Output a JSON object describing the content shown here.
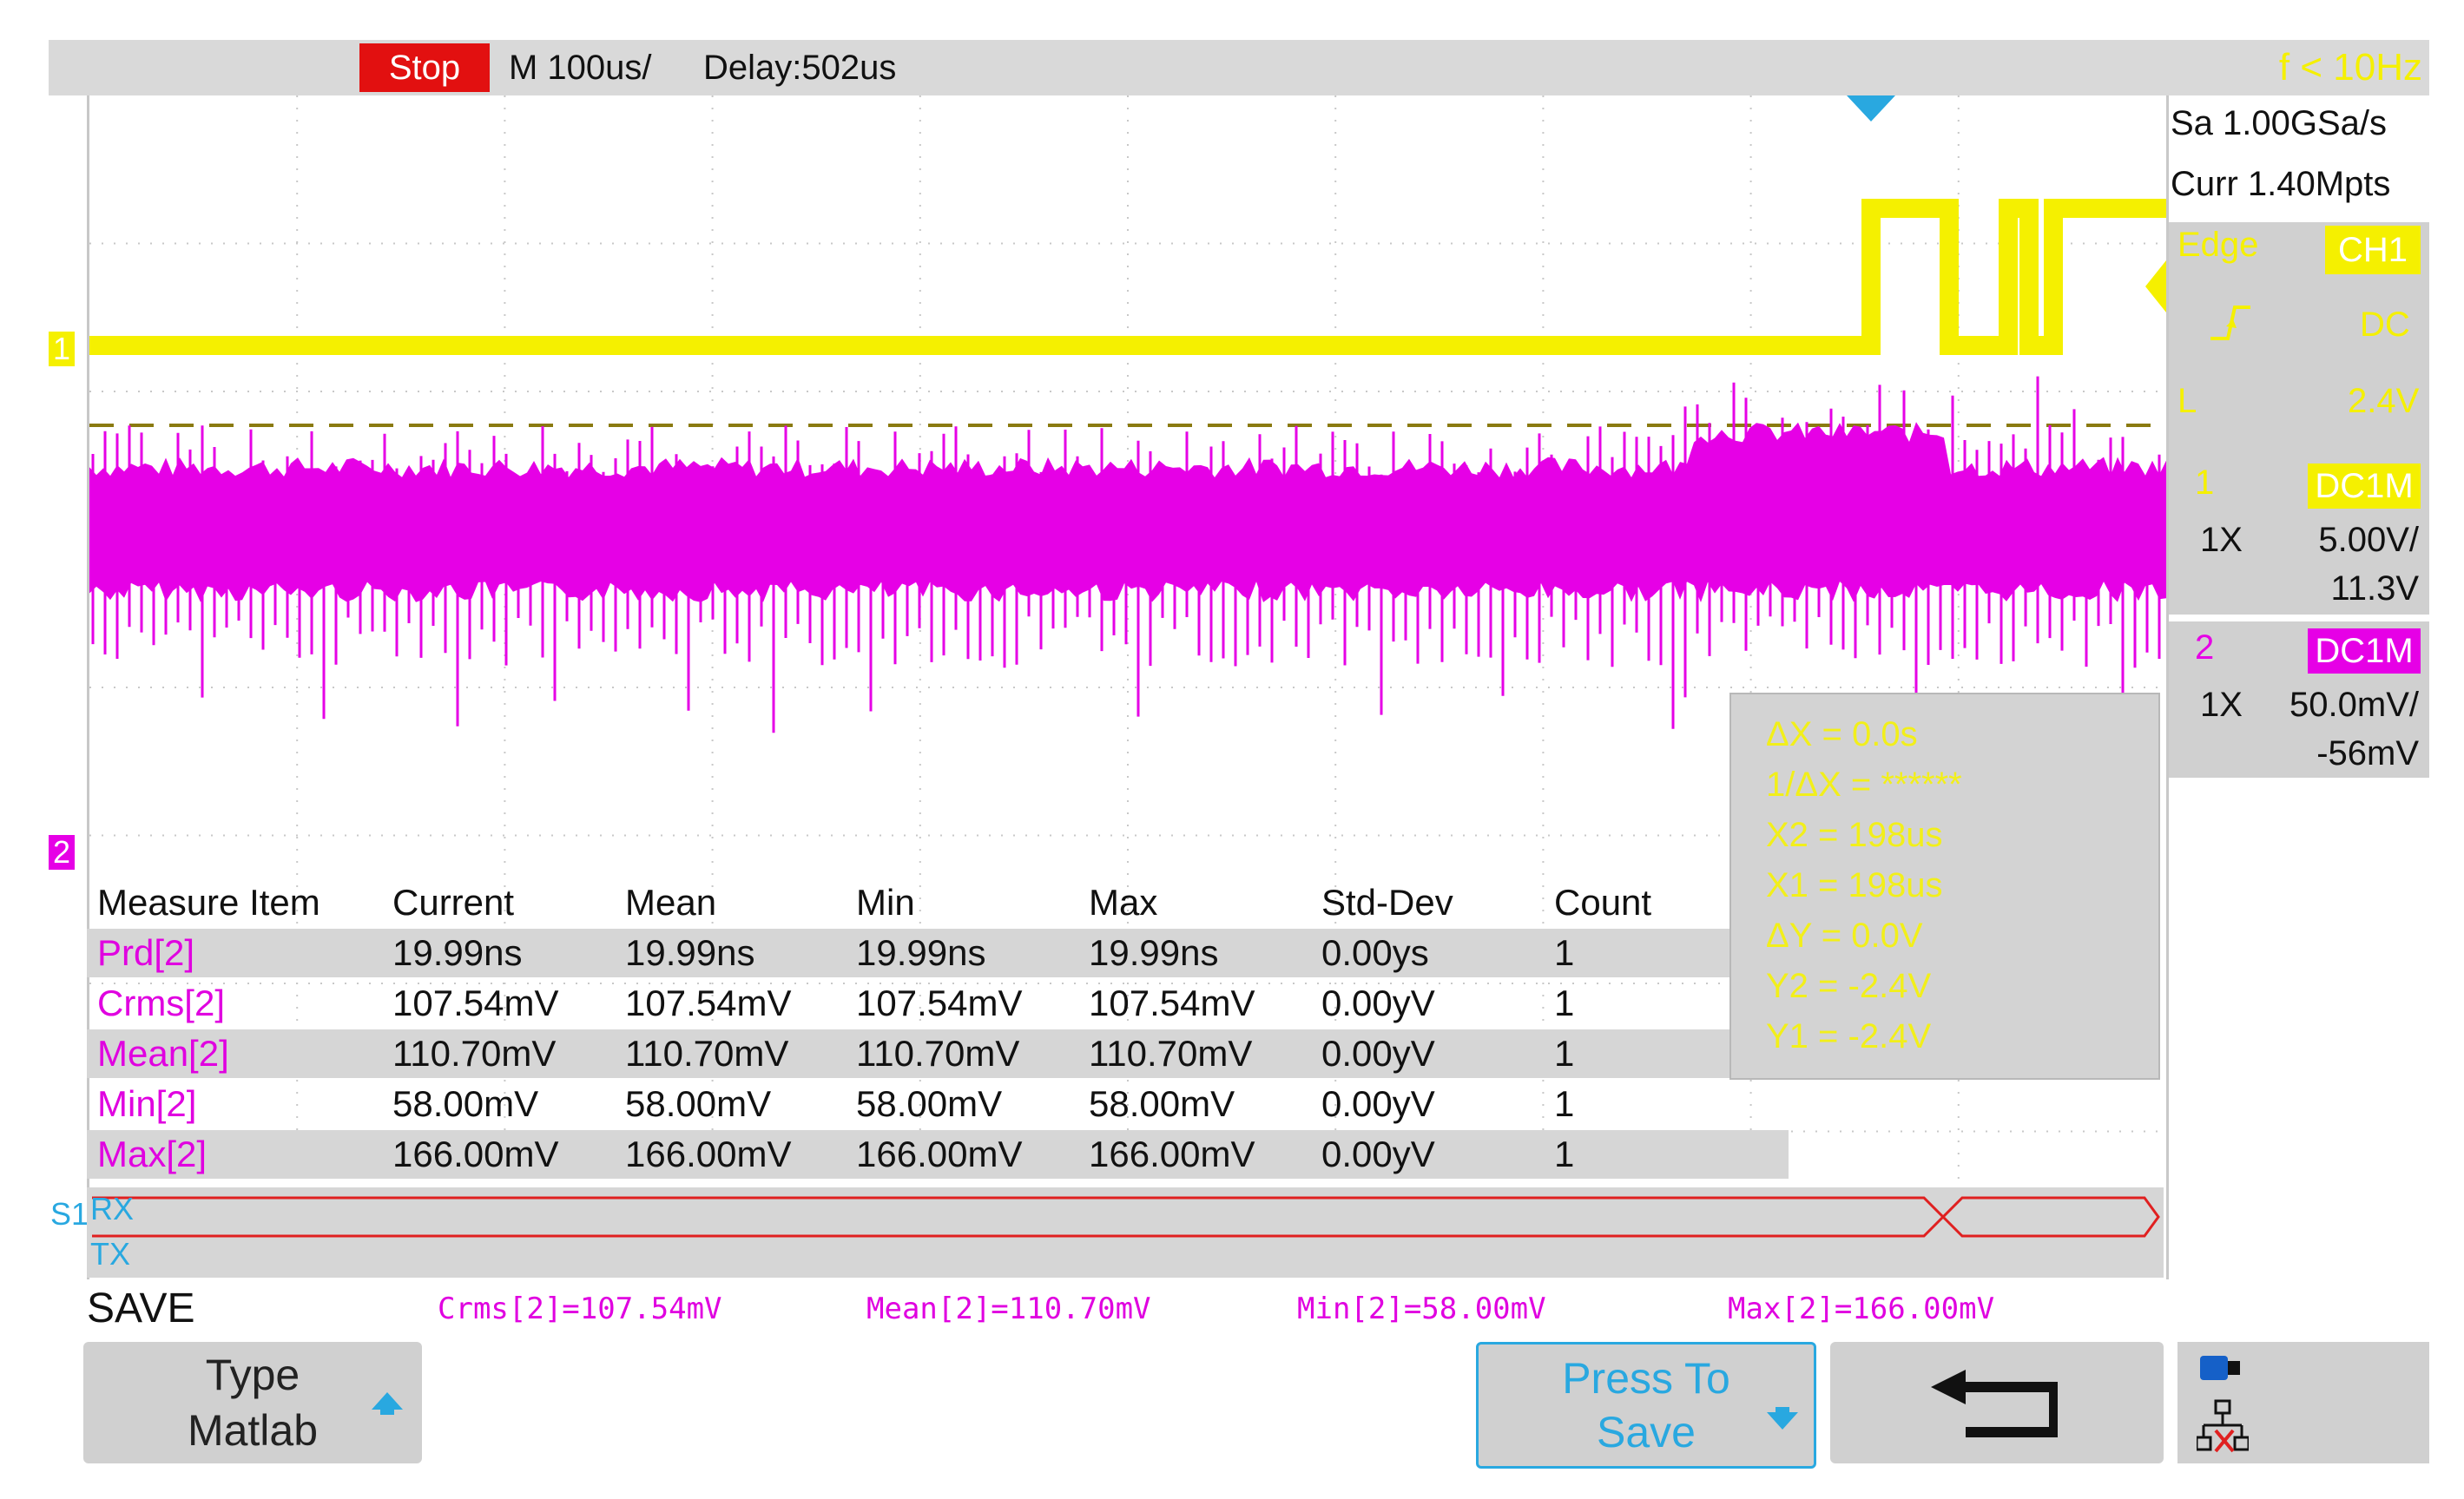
{
  "top_bar": {
    "run_state": "Stop",
    "timebase": "M 100us/",
    "delay": "Delay:502us",
    "frequency": "f < 10Hz"
  },
  "acquisition": {
    "sample_rate": "Sa 1.00GSa/s",
    "memory": "Curr 1.40Mpts"
  },
  "trigger": {
    "type": "Edge",
    "source": "CH1",
    "coupling": "DC",
    "level_label": "L",
    "level": "2.4V"
  },
  "channels": [
    {
      "number": "1",
      "coupling": "DC1M",
      "probe": "1X",
      "scale": "5.00V/",
      "offset": "11.3V",
      "color": "#f5f000"
    },
    {
      "number": "2",
      "coupling": "DC1M",
      "probe": "1X",
      "scale": "50.0mV/",
      "offset": "-56mV",
      "color": "#e600e6"
    }
  ],
  "channel_markers": {
    "ch1": "1",
    "ch2": "2"
  },
  "measure_table": {
    "headers": [
      "Measure Item",
      "Current",
      "Mean",
      "Min",
      "Max",
      "Std-Dev",
      "Count"
    ],
    "rows": [
      [
        "Prd[2]",
        "19.99ns",
        "19.99ns",
        "19.99ns",
        "19.99ns",
        "0.00ys",
        "1"
      ],
      [
        "Crms[2]",
        "107.54mV",
        "107.54mV",
        "107.54mV",
        "107.54mV",
        "0.00yV",
        "1"
      ],
      [
        "Mean[2]",
        "110.70mV",
        "110.70mV",
        "110.70mV",
        "110.70mV",
        "0.00yV",
        "1"
      ],
      [
        "Min[2]",
        "58.00mV",
        "58.00mV",
        "58.00mV",
        "58.00mV",
        "0.00yV",
        "1"
      ],
      [
        "Max[2]",
        "166.00mV",
        "166.00mV",
        "166.00mV",
        "166.00mV",
        "0.00yV",
        "1"
      ]
    ]
  },
  "cursors": {
    "dx": "ΔX = 0.0s",
    "inv_dx": "1/ΔX = ******",
    "x2": "X2 = 198us",
    "x1": "X1 = 198us",
    "dy": "ΔY = 0.0V",
    "y2": "Y2 = -2.4V",
    "y1": "Y1 = -2.4V"
  },
  "serial": {
    "bus": "S1",
    "rx": "RX",
    "tx": "TX"
  },
  "bottom": {
    "menu_title": "SAVE",
    "readouts": [
      "Crms[2]=107.54mV",
      "Mean[2]=110.70mV",
      "Min[2]=58.00mV",
      "Max[2]=166.00mV"
    ],
    "softkey_type_line1": "Type",
    "softkey_type_line2": "Matlab",
    "softkey_press_line1": "Press To",
    "softkey_press_line2": "Save"
  },
  "icons": {
    "type_arrow": "arrow-up-icon",
    "press_arrow": "arrow-down-icon",
    "back": "return-arrow-icon",
    "usb": "usb-storage-icon",
    "network": "network-disconnected-icon"
  },
  "colors": {
    "ch1": "#f5f000",
    "ch2": "#e600e6",
    "stop": "#e21010",
    "accent": "#29a8e0",
    "serial_bus": "#e02020"
  }
}
